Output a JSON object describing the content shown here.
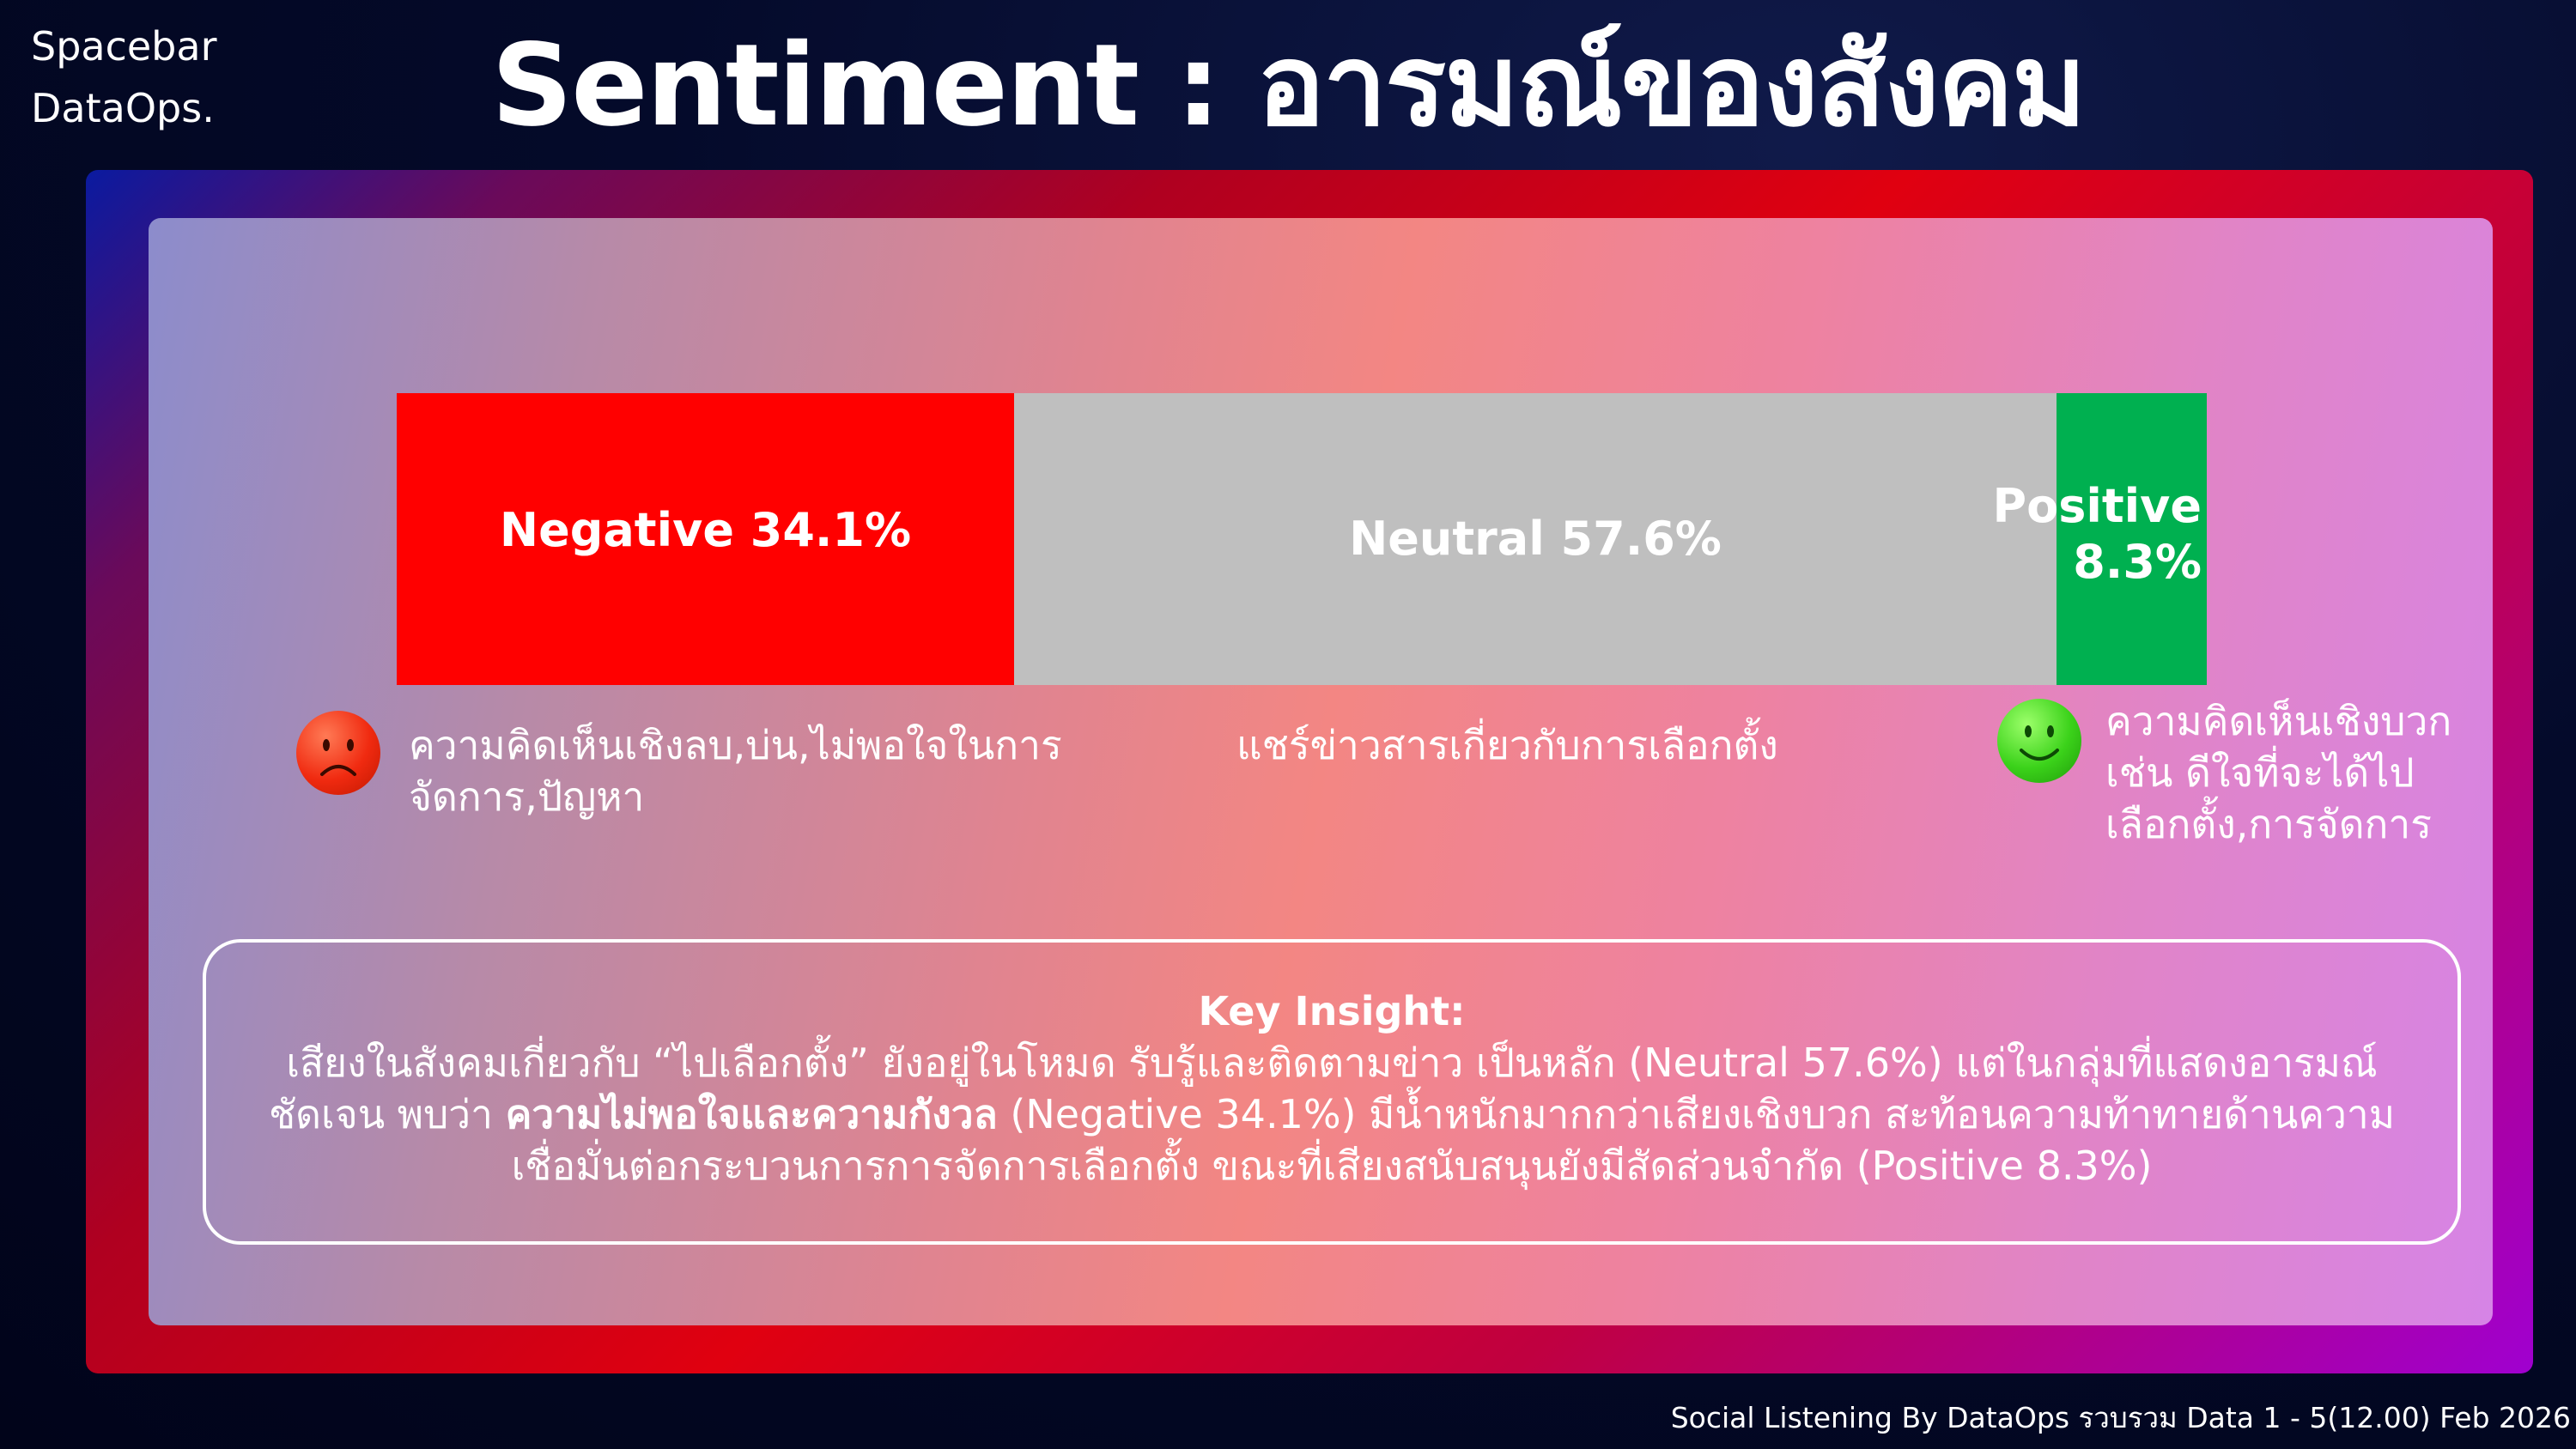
{
  "brand": {
    "line1": "Spacebar",
    "line2": "DataOps."
  },
  "title": "Sentiment : อารมณ์ของสังคม",
  "chart_data": {
    "type": "bar",
    "orientation": "horizontal-stacked",
    "categories": [
      "Negative",
      "Neutral",
      "Positive"
    ],
    "values": [
      34.1,
      57.6,
      8.3
    ],
    "unit": "%",
    "colors": [
      "#ff0000",
      "#bfbfbf",
      "#00b050"
    ],
    "labels": [
      "Negative 34.1%",
      "Neutral 57.6%",
      "Positive 8.3%"
    ]
  },
  "segments": {
    "negative": {
      "label": "Negative 34.1%"
    },
    "neutral": {
      "label": "Neutral 57.6%"
    },
    "positive": {
      "label_line1": "Positive",
      "label_line2": "8.3%"
    }
  },
  "descriptions": {
    "negative": {
      "line1": "ความคิดเห็นเชิงลบ,บ่น,ไม่พอใจในการ",
      "line2": "จัดการ,ปัญหา"
    },
    "neutral": "แชร์ข่าวสารเกี่ยวกับการเลือกตั้ง",
    "positive": {
      "line1": "ความคิดเห็นเชิงบวก",
      "line2": "เช่น ดีใจที่จะได้ไป",
      "line3": "เลือกตั้ง,การจัดการ"
    }
  },
  "icons": {
    "negative": "sad-face-icon",
    "positive": "happy-face-icon"
  },
  "insight": {
    "title": "Key Insight:",
    "line1": "เสียงในสังคมเกี่ยวกับ “ไปเลือกตั้ง” ยังอยู่ในโหมด รับรู้และติดตามข่าว เป็นหลัก (Neutral 57.6%) แต่ในกลุ่มที่แสดงอารมณ์",
    "line2_pre": "ชัดเจน พบว่า ",
    "line2_strong": "ความไม่พอใจและความกังวล",
    "line2_post": " (Negative 34.1%) มีน้ำหนักมากกว่าเสียงเชิงบวก สะท้อนความท้าทายด้านความ",
    "line3": "เชื่อมั่นต่อกระบวนการการจัดการเลือกตั้ง ขณะที่เสียงสนับสนุนยังมีสัดส่วนจำกัด (Positive 8.3%)"
  },
  "footer": "Social Listening By DataOps รวบรวม Data 1 - 5(12.00) Feb 2026"
}
